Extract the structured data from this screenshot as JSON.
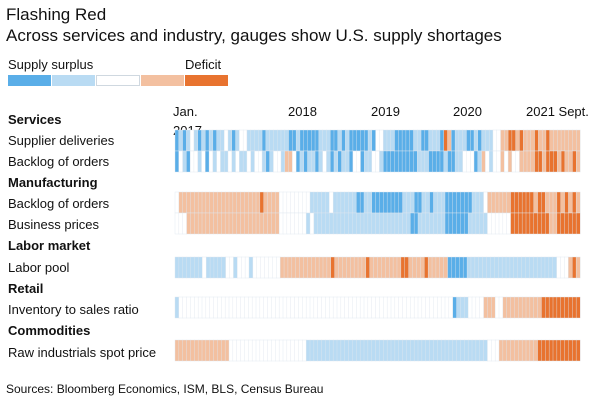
{
  "title": "Flashing Red",
  "subtitle": "Across services and industry, gauges show U.S. supply shortages",
  "legend": {
    "surplus_label": "Supply surplus",
    "deficit_label": "Deficit",
    "scale_colors": [
      "#5aaee8",
      "#b9dbf3",
      "#ffffff",
      "#f3c0a0",
      "#e8732f"
    ]
  },
  "source": "Sources: Bloomberg Economics, ISM, BLS, Census Bureau",
  "chart_data": {
    "type": "heatmap",
    "x_start": "2017-01",
    "x_end": "2021-09",
    "x_tick_labels": [
      "Jan.",
      "2017",
      "2018",
      "2019",
      "2020",
      "2021 Sept."
    ],
    "value_scale": "-2 (supply surplus) to +2 (deficit)",
    "groups": [
      {
        "name": "Services",
        "rows": [
          {
            "label": "Supplier deliveries",
            "values": [
              -2,
              -1,
              -2,
              -1,
              0,
              -1,
              -2,
              -1,
              -2,
              -1,
              -2,
              -1,
              -1,
              0,
              -1,
              -2,
              -1,
              0,
              0,
              -1,
              -1,
              -1,
              -1,
              -2,
              -1,
              -1,
              -1,
              -1,
              -1,
              -1,
              -2,
              -2,
              -1,
              -2,
              -2,
              -2,
              -2,
              -2,
              -1,
              -1,
              -1,
              -2,
              -2,
              -1,
              -2,
              -1,
              -2,
              -2,
              -2,
              -2,
              -2,
              -1,
              -2,
              0,
              0,
              -1,
              -1,
              -1,
              -2,
              -2,
              -2,
              -2,
              -2,
              -1,
              -1,
              -2,
              -2,
              -1,
              -1,
              -1,
              -2,
              2,
              1,
              -2,
              -1,
              -1,
              -1,
              -2,
              -2,
              -1,
              -2,
              -1,
              -1,
              -1,
              0,
              0,
              1,
              1,
              2,
              2,
              1,
              2,
              1,
              1,
              1,
              2,
              1,
              1,
              2,
              1,
              1,
              1,
              1,
              1,
              1,
              1,
              1
            ]
          },
          {
            "label": "Backlog of orders",
            "values": [
              -2,
              0,
              -1,
              -2,
              0,
              0,
              -1,
              0,
              -2,
              0,
              -1,
              0,
              -1,
              -1,
              0,
              -1,
              0,
              -1,
              -1,
              0,
              -1,
              0,
              0,
              -1,
              -2,
              -1,
              0,
              0,
              -1,
              1,
              1,
              0,
              -2,
              -1,
              -2,
              -1,
              -1,
              -2,
              -1,
              0,
              -1,
              -2,
              -1,
              -2,
              -1,
              -1,
              -2,
              0,
              0,
              -2,
              -1,
              -1,
              0,
              0,
              -1,
              -2,
              -2,
              -2,
              -2,
              -2,
              -2,
              -2,
              -2,
              -2,
              -1,
              -1,
              -1,
              -2,
              -2,
              -2,
              -2,
              -1,
              -2,
              -2,
              -1,
              -1,
              0,
              0,
              0,
              -2,
              -1,
              1,
              0,
              -1,
              0,
              0,
              1,
              0,
              1,
              0,
              0,
              1,
              1,
              1,
              1,
              2,
              2,
              1,
              2,
              2,
              2,
              1,
              2,
              1,
              1,
              2,
              1
            ]
          }
        ]
      },
      {
        "name": "Manufacturing",
        "rows": [
          {
            "label": "Backlog of orders",
            "values": [
              0,
              1,
              1,
              1,
              1,
              1,
              1,
              1,
              1,
              1,
              1,
              1,
              1,
              1,
              1,
              1,
              1,
              1,
              1,
              1,
              1,
              1,
              2,
              1,
              1,
              1,
              1,
              0,
              0,
              0,
              0,
              0,
              0,
              0,
              0,
              -1,
              -1,
              -1,
              -1,
              -1,
              0,
              -1,
              -1,
              -1,
              -1,
              -1,
              -1,
              -2,
              -2,
              -1,
              -1,
              -2,
              -2,
              -2,
              -2,
              -2,
              -2,
              -2,
              -2,
              -1,
              -1,
              -1,
              -2,
              -2,
              -1,
              -1,
              -2,
              -1,
              -1,
              -1,
              -2,
              -2,
              -2,
              -2,
              -2,
              -2,
              -2,
              -1,
              -1,
              -1,
              0,
              1,
              1,
              1,
              1,
              1,
              1,
              2,
              2,
              2,
              2,
              2,
              2,
              1,
              2,
              2,
              1,
              1,
              1,
              2,
              1,
              2,
              1,
              2,
              1
            ]
          },
          {
            "label": "Business prices",
            "values": [
              0,
              0,
              0,
              1,
              1,
              1,
              1,
              1,
              1,
              1,
              1,
              1,
              1,
              1,
              1,
              1,
              1,
              1,
              1,
              1,
              1,
              1,
              1,
              1,
              1,
              1,
              1,
              0,
              0,
              0,
              0,
              0,
              0,
              0,
              -1,
              0,
              -1,
              -1,
              -1,
              -1,
              -1,
              -1,
              -1,
              -1,
              -1,
              -1,
              -1,
              -1,
              -1,
              -1,
              -1,
              -1,
              -1,
              -1,
              -1,
              -1,
              -1,
              -1,
              -1,
              -1,
              -1,
              -2,
              -2,
              -1,
              -1,
              -1,
              -1,
              -1,
              -1,
              -1,
              -2,
              -2,
              -2,
              -2,
              -2,
              -2,
              -1,
              -1,
              -1,
              -1,
              -1,
              0,
              0,
              0,
              0,
              0,
              0,
              2,
              2,
              2,
              2,
              2,
              2,
              2,
              2,
              2,
              2,
              1,
              1,
              2,
              2,
              2,
              2,
              2,
              2
            ]
          }
        ]
      },
      {
        "name": "Labor market",
        "rows": [
          {
            "label": "Labor pool",
            "values": [
              -1,
              -1,
              -1,
              -1,
              -1,
              -1,
              -1,
              0,
              -1,
              -1,
              -1,
              -1,
              -1,
              0,
              0,
              -1,
              0,
              0,
              0,
              -1,
              0,
              0,
              0,
              0,
              0,
              0,
              0,
              1,
              1,
              1,
              1,
              1,
              1,
              1,
              1,
              1,
              1,
              1,
              1,
              1,
              2,
              1,
              1,
              1,
              1,
              1,
              1,
              1,
              1,
              2,
              1,
              1,
              1,
              1,
              1,
              1,
              1,
              1,
              2,
              2,
              1,
              1,
              1,
              1,
              2,
              1,
              1,
              1,
              1,
              1,
              -2,
              -2,
              -2,
              -2,
              -2,
              -1,
              -1,
              -1,
              -1,
              -1,
              -1,
              -1,
              -1,
              -1,
              -1,
              -1,
              -1,
              -1,
              -1,
              -1,
              -1,
              -1,
              -1,
              -1,
              -1,
              -1,
              -1,
              -1,
              0,
              0,
              0,
              1,
              2,
              1
            ]
          }
        ]
      },
      {
        "name": "Retail",
        "rows": [
          {
            "label": "Inventory to sales ratio",
            "values": [
              -1,
              0,
              0,
              0,
              0,
              0,
              0,
              0,
              0,
              0,
              0,
              0,
              0,
              0,
              0,
              0,
              0,
              0,
              0,
              0,
              0,
              0,
              0,
              0,
              0,
              0,
              0,
              0,
              0,
              0,
              0,
              0,
              0,
              0,
              0,
              0,
              0,
              0,
              0,
              0,
              0,
              0,
              0,
              0,
              0,
              0,
              0,
              0,
              0,
              0,
              0,
              0,
              0,
              0,
              0,
              0,
              0,
              0,
              0,
              0,
              0,
              0,
              0,
              0,
              0,
              0,
              0,
              0,
              0,
              0,
              0,
              0,
              -2,
              -1,
              -1,
              -1,
              0,
              0,
              0,
              0,
              1,
              1,
              1,
              0,
              0,
              1,
              1,
              1,
              1,
              1,
              1,
              1,
              1,
              1,
              1,
              2,
              2,
              2,
              2,
              2,
              2,
              2,
              2,
              2,
              2
            ]
          }
        ]
      },
      {
        "name": "Commodities",
        "rows": [
          {
            "label": "Raw industrials spot price",
            "values": [
              1,
              1,
              1,
              1,
              1,
              1,
              1,
              1,
              1,
              1,
              1,
              1,
              1,
              1,
              0,
              0,
              0,
              0,
              0,
              0,
              0,
              0,
              0,
              0,
              0,
              0,
              0,
              0,
              0,
              0,
              0,
              0,
              0,
              0,
              -1,
              -1,
              -1,
              -1,
              -1,
              -1,
              -1,
              -1,
              -1,
              -1,
              -1,
              -1,
              -1,
              -1,
              -1,
              -1,
              -1,
              -1,
              -1,
              -1,
              -1,
              -1,
              -1,
              -1,
              -1,
              -1,
              -1,
              -1,
              -1,
              -1,
              -1,
              -1,
              -1,
              -1,
              -1,
              -1,
              -1,
              -1,
              -1,
              -1,
              -1,
              -1,
              -1,
              -1,
              -1,
              -1,
              -1,
              0,
              0,
              0,
              1,
              1,
              1,
              1,
              1,
              1,
              1,
              1,
              1,
              1,
              2,
              2,
              2,
              2,
              2,
              2,
              2,
              2,
              2,
              2,
              2
            ]
          }
        ]
      }
    ]
  }
}
